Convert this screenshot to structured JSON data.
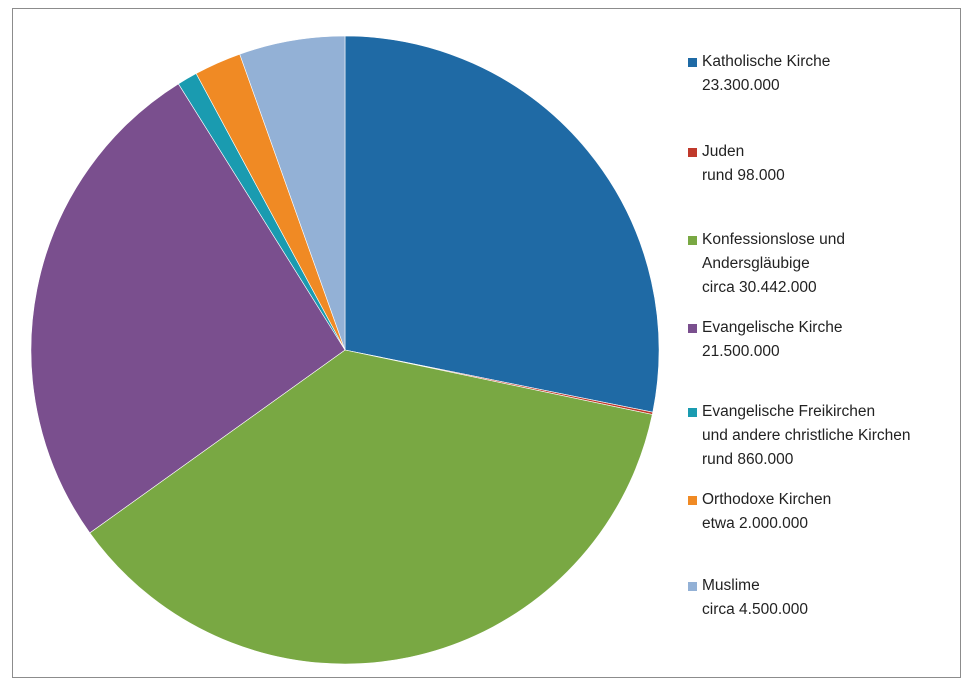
{
  "chart_data": {
    "type": "pie",
    "title": "",
    "legend_position": "right",
    "slices": [
      {
        "label_lines": [
          "Katholische Kirche",
          "23.300.000"
        ],
        "value": 23300000,
        "color": "#1f6aa5"
      },
      {
        "label_lines": [
          "Juden",
          "rund 98.000"
        ],
        "value": 98000,
        "color": "#c0392b"
      },
      {
        "label_lines": [
          "Konfessionslose und",
          "Andersgläubige",
          "circa 30.442.000"
        ],
        "value": 30442000,
        "color": "#79a843"
      },
      {
        "label_lines": [
          "Evangelische  Kirche",
          "21.500.000"
        ],
        "value": 21500000,
        "color": "#7a4f8e"
      },
      {
        "label_lines": [
          "Evangelische Freikirchen",
          "und andere christliche Kirchen",
          "rund 860.000"
        ],
        "value": 860000,
        "color": "#1a9bb0"
      },
      {
        "label_lines": [
          "Orthodoxe Kirchen",
          "etwa 2.000.000"
        ],
        "value": 2000000,
        "color": "#f08a24"
      },
      {
        "label_lines": [
          "Muslime",
          "circa 4.500.000"
        ],
        "value": 4500000,
        "color": "#93b1d6"
      }
    ]
  }
}
